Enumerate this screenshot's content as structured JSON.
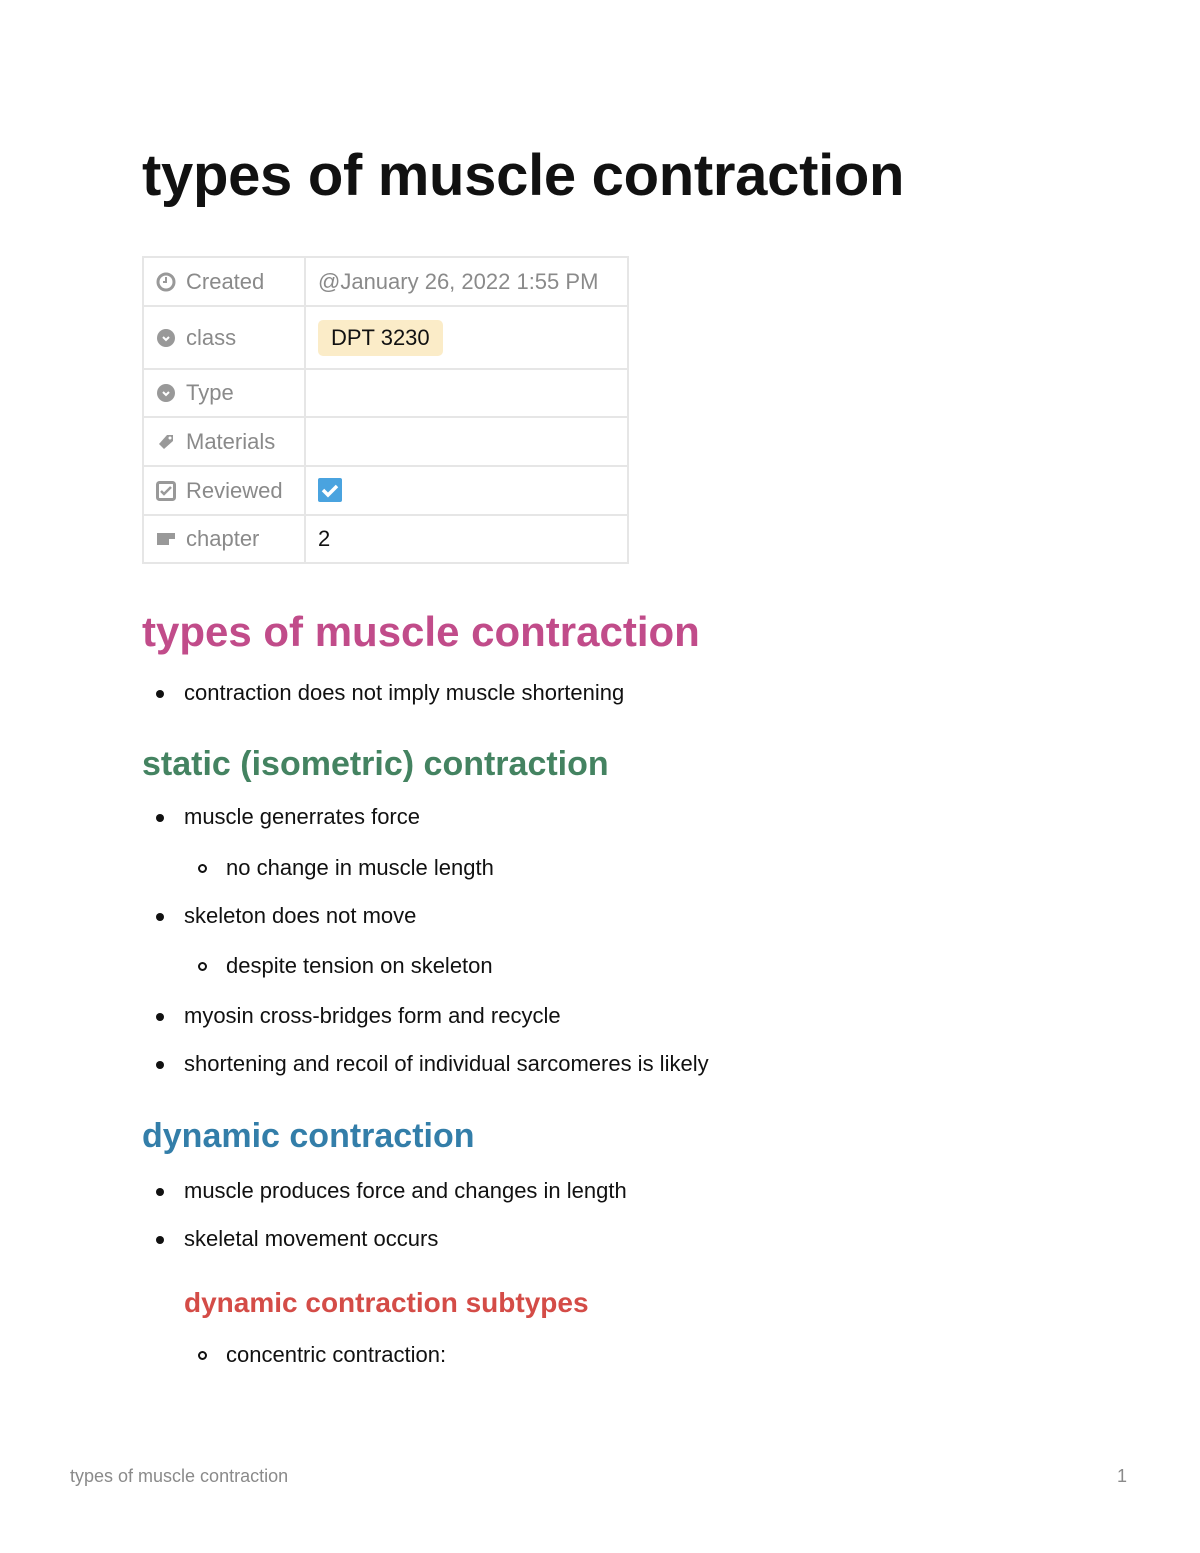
{
  "title": "types of muscle contraction",
  "properties": [
    {
      "icon": "clock-icon",
      "label": "Created",
      "value": "@January 26, 2022 1:55 PM"
    },
    {
      "icon": "select-icon",
      "label": "class",
      "tag": "DPT 3230",
      "tag_color": "#fbecc8"
    },
    {
      "icon": "select-icon",
      "label": "Type",
      "value": ""
    },
    {
      "icon": "tag-icon",
      "label": "Materials",
      "value": ""
    },
    {
      "icon": "checkbox-icon",
      "label": "Reviewed",
      "checked": true,
      "check_color": "#4aa3df"
    },
    {
      "icon": "text-icon",
      "label": "chapter",
      "value": "2"
    }
  ],
  "sections": {
    "h1": {
      "text": "types of muscle contraction",
      "color": "#c14c8a"
    },
    "b1": "contraction does not imply muscle shortening",
    "h_static": {
      "text": "static (isometric) contraction",
      "color": "#448361"
    },
    "static_items": [
      "muscle generrates force",
      "no change in muscle length",
      "skeleton does not move",
      "despite tension on skeleton",
      "myosin cross-bridges form and recycle",
      "shortening and recoil of individual sarcomeres is likely"
    ],
    "h_dynamic": {
      "text": "dynamic contraction",
      "color": "#337ea9"
    },
    "dynamic_items": [
      "muscle produces force and changes in length",
      "skeletal movement occurs"
    ],
    "h_subtypes": {
      "text": "dynamic contraction subtypes",
      "color": "#d44c47"
    },
    "subtype_items": [
      "concentric contraction:"
    ]
  },
  "footer": {
    "title": "types of muscle contraction",
    "page": "1"
  }
}
